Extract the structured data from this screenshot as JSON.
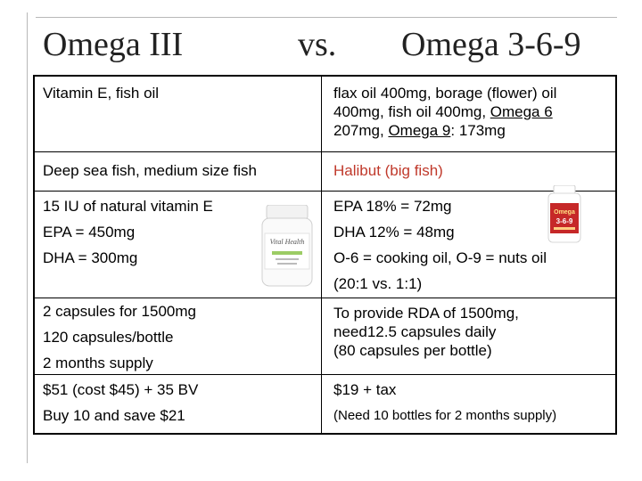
{
  "title": {
    "left": "Omega III",
    "middle": "vs.",
    "right": "Omega 3-6-9"
  },
  "rows": [
    {
      "left": [
        "Vitamin E, fish oil"
      ],
      "right_parts": [
        "flax oil 400mg, borage (flower) oil",
        "400mg, fish oil 400mg, ",
        "Omega 6",
        "207mg, ",
        "Omega 9",
        ": 173mg"
      ]
    },
    {
      "left": [
        "Deep sea fish, medium size fish"
      ],
      "right": [
        "Halibut (big fish)"
      ]
    },
    {
      "left": [
        "15 IU of natural vitamin E",
        "EPA = 450mg",
        "DHA = 300mg"
      ],
      "right": [
        "EPA 18% = 72mg",
        "DHA 12% = 48mg",
        "O-6 = cooking oil, O-9 = nuts oil",
        "(20:1 vs. 1:1)"
      ]
    },
    {
      "left": [
        "2 capsules for 1500mg",
        "120 capsules/bottle",
        "2 months supply"
      ],
      "right": [
        "To provide RDA of 1500mg,",
        "need12.5 capsules daily",
        "(80 capsules per bottle)"
      ]
    },
    {
      "left": [
        "$51 (cost $45) + 35 BV",
        "Buy 10 and save $21"
      ],
      "right": [
        "$19 + tax",
        "(Need 10 bottles for 2 months supply)"
      ]
    }
  ],
  "images": {
    "white_bottle_icon": "supplement-bottle-white",
    "red_bottle_icon": "supplement-bottle-omega369",
    "white_bottle_label": "Vital Health",
    "red_bottle_label": "Omega 3-6-9",
    "red_bottle_color": "#c62828",
    "white_bottle_cap_color": "#f2f2f2"
  }
}
